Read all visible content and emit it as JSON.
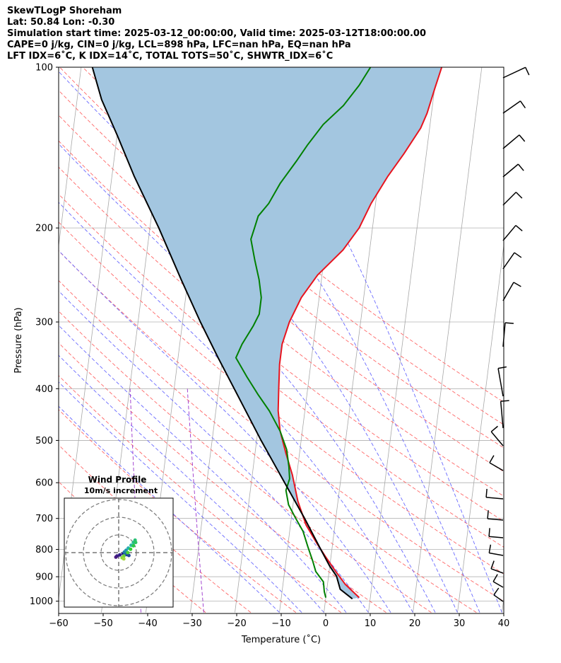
{
  "header": {
    "line1": "SkewTLogP Shoreham",
    "line2": "Lat: 50.84   Lon: -0.30",
    "line3": "Simulation start time: 2025-03-12_00:00:00, Valid time: 2025-03-12T18:00:00.00",
    "line4": "CAPE=0 j/kg, CIN=0 j/kg, LCL=898 hPa, LFC=nan hPa, EQ=nan hPa",
    "line5": "LFT IDX=6˚C, K IDX=14˚C, TOTAL TOTS=50˚C, SHWTR_IDX=6˚C"
  },
  "chart_data": [
    {
      "type": "line",
      "title": "",
      "xlabel": "Temperature (˚C)",
      "ylabel": "Pressure (hPa)",
      "xlim": [
        -60,
        40
      ],
      "ylim": [
        1050,
        100
      ],
      "y_scale": "log",
      "grid": true,
      "x_ticks": [
        -60,
        -50,
        -40,
        -30,
        -20,
        -10,
        0,
        10,
        20,
        30,
        40
      ],
      "x_tick_labels": [
        "−60",
        "−50",
        "−40",
        "−30",
        "−20",
        "−10",
        "0",
        "10",
        "20",
        "30",
        "40"
      ],
      "y_ticks": [
        100,
        200,
        300,
        400,
        500,
        600,
        700,
        800,
        900,
        1000
      ],
      "y_tick_labels": [
        "100",
        "200",
        "300",
        "400",
        "500",
        "600",
        "700",
        "800",
        "900",
        "1000"
      ],
      "background_lines": {
        "isotherms": "gray",
        "dry_adiabats": "#ff6666",
        "moist_adiabats": "#6a6aff",
        "mixing_ratio": "#9932cc"
      },
      "shaded_area_color": "#a3c6e0",
      "series": [
        {
          "role": "temperature",
          "color": "#e8141e",
          "points": [
            [
              7.5,
              985
            ],
            [
              4,
              930
            ],
            [
              1.5,
              880
            ],
            [
              -1,
              830
            ],
            [
              -3.5,
              780
            ],
            [
              -6.5,
              720
            ],
            [
              -9,
              650
            ],
            [
              -11,
              580
            ],
            [
              -13,
              530
            ],
            [
              -15,
              480
            ],
            [
              -16,
              440
            ],
            [
              -16.5,
              400
            ],
            [
              -17,
              360
            ],
            [
              -17,
              330
            ],
            [
              -16,
              300
            ],
            [
              -14,
              270
            ],
            [
              -11,
              245
            ],
            [
              -6,
              220
            ],
            [
              -3,
              200
            ],
            [
              -1,
              180
            ],
            [
              2,
              160
            ],
            [
              5,
              145
            ],
            [
              8,
              130
            ],
            [
              9,
              122
            ],
            [
              10,
              110
            ],
            [
              11,
              100
            ]
          ]
        },
        {
          "role": "dewpoint",
          "color": "#008000",
          "points": [
            [
              0,
              985
            ],
            [
              -0.5,
              960
            ],
            [
              -1,
              920
            ],
            [
              -3,
              880
            ],
            [
              -4,
              840
            ],
            [
              -5.5,
              790
            ],
            [
              -7,
              740
            ],
            [
              -9,
              700
            ],
            [
              -11,
              660
            ],
            [
              -12,
              620
            ],
            [
              -11.5,
              590
            ],
            [
              -12,
              560
            ],
            [
              -13,
              520
            ],
            [
              -15,
              480
            ],
            [
              -18,
              440
            ],
            [
              -21,
              410
            ],
            [
              -24,
              380
            ],
            [
              -27,
              350
            ],
            [
              -26,
              330
            ],
            [
              -24,
              305
            ],
            [
              -23,
              290
            ],
            [
              -23,
              270
            ],
            [
              -24,
              250
            ],
            [
              -25.5,
              230
            ],
            [
              -27,
              210
            ],
            [
              -26.5,
              200
            ],
            [
              -26,
              190
            ],
            [
              -24,
              180
            ],
            [
              -22,
              165
            ],
            [
              -19,
              150
            ],
            [
              -17,
              140
            ],
            [
              -14,
              128
            ],
            [
              -10,
              118
            ],
            [
              -7,
              108
            ],
            [
              -5,
              100
            ]
          ]
        },
        {
          "role": "parcel",
          "color": "#000000",
          "points": [
            [
              6,
              990
            ],
            [
              3,
              950
            ],
            [
              1.8,
              898
            ],
            [
              0,
              860
            ],
            [
              -2.5,
              800
            ],
            [
              -7,
              700
            ],
            [
              -12.5,
              600
            ],
            [
              -19,
              500
            ],
            [
              -26.5,
              400
            ],
            [
              -31,
              350
            ],
            [
              -36,
              300
            ],
            [
              -41.5,
              250
            ],
            [
              -48,
              200
            ],
            [
              -55,
              160
            ],
            [
              -60,
              134
            ],
            [
              -64.5,
              115
            ],
            [
              -67.5,
              100
            ]
          ]
        }
      ]
    },
    {
      "type": "scatter",
      "title": "Wind Profile",
      "subtitle": "10m/s increment",
      "rings": 3,
      "points": [
        [
          -0.5,
          -0.8
        ],
        [
          -0.3,
          -0.6
        ],
        [
          0.2,
          -0.4
        ],
        [
          0.8,
          -0.2
        ],
        [
          1.4,
          -0.35
        ],
        [
          1.8,
          -0.5
        ],
        [
          1.2,
          -0.2
        ],
        [
          1.0,
          0.1
        ],
        [
          1.3,
          0.4
        ],
        [
          1.7,
          0.8
        ],
        [
          2.2,
          1.3
        ],
        [
          2.6,
          1.8
        ],
        [
          2.9,
          2.2
        ],
        [
          3.0,
          1.8
        ],
        [
          2.6,
          1.2
        ],
        [
          2.1,
          0.6
        ],
        [
          1.6,
          0.0
        ],
        [
          0.9,
          -0.6
        ],
        [
          0.6,
          -0.9
        ],
        [
          0.9,
          -1.1
        ]
      ]
    }
  ]
}
